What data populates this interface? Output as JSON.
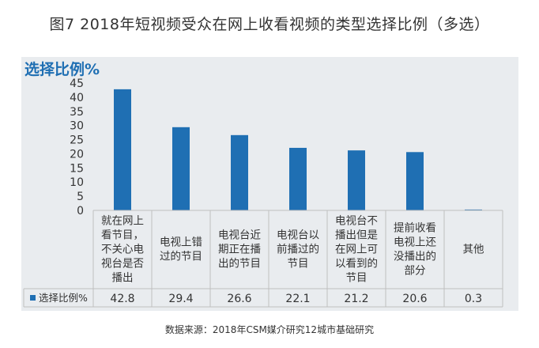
{
  "figure_title": "图7  2018年短视频受众在网上收看视频的类型选择比例（多选）",
  "source_note": "数据来源：2018年CSM媒介研究12城市基础研究",
  "colors": {
    "bar": "#1f6fb3",
    "panel": "#e9ecef",
    "grid": "#bfbfbf",
    "text": "#333333"
  },
  "chart_data": {
    "type": "bar",
    "title": "选择比例%",
    "categories": [
      "就在网上看节目，不关心电视台是否播出",
      "电视上错过的节目",
      "电视台近期正在播出的节目",
      "电视台以前播过的节目",
      "电视台不播出但是在网上可以看到的节目",
      "提前收看电视上还没播出的部分",
      "其他"
    ],
    "category_lines": [
      [
        "就在网上",
        "看节目，",
        "不关心电",
        "视台是否",
        "播出"
      ],
      [
        "电视上错",
        "过的节目"
      ],
      [
        "电视台近",
        "期正在播",
        "出的节目"
      ],
      [
        "电视台以",
        "前播过的",
        "节目"
      ],
      [
        "电视台不",
        "播出但是",
        "在网上可",
        "以看到的",
        "节目"
      ],
      [
        "提前收看",
        "电视上还",
        "没播出的",
        "部分"
      ],
      [
        "其他"
      ]
    ],
    "series": [
      {
        "name": "选择比例%",
        "values": [
          42.8,
          29.4,
          26.6,
          22.1,
          21.2,
          20.6,
          0.3
        ]
      }
    ],
    "value_labels": [
      "42.8",
      "29.4",
      "26.6",
      "22.1",
      "21.2",
      "20.6",
      "0.3"
    ],
    "ylim": [
      0,
      45
    ],
    "yticks": [
      0,
      5,
      10,
      15,
      20,
      25,
      30,
      35,
      40,
      45
    ],
    "legend": "data-table",
    "grid": false
  }
}
